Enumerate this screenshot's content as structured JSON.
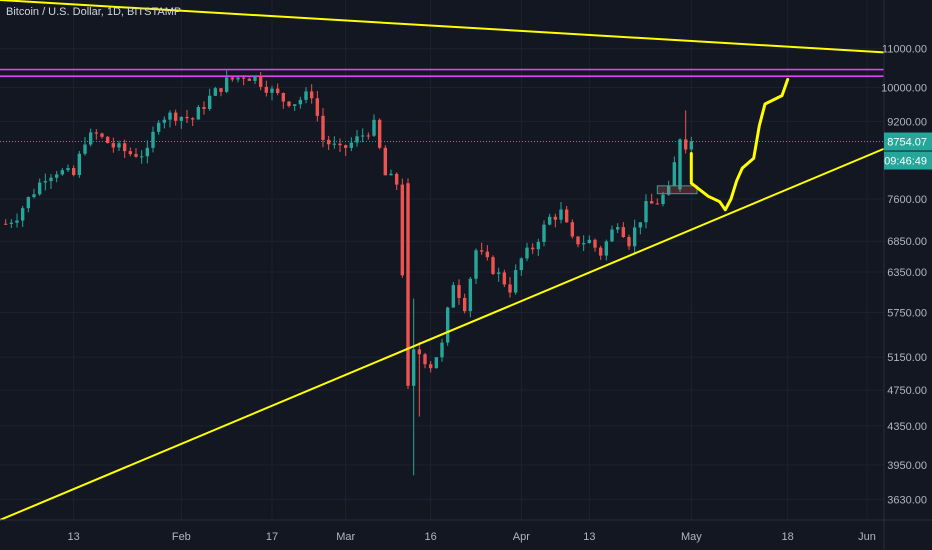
{
  "header": {
    "symbol_title": "Bitcoin / U.S. Dollar, 1D, BITSTAMP"
  },
  "colors": {
    "background": "#131722",
    "up": "#26a69a",
    "down": "#ef5350",
    "drawing_yellow": "#ffff00",
    "drawing_magenta": "#e040fb",
    "axis_text": "#b2b5be",
    "last_price_tag": "#26a69a"
  },
  "price_tag": {
    "price": "8754.07",
    "countdown": "09:46:49"
  },
  "chart_data": {
    "type": "candlestick",
    "title": "",
    "scale": "log",
    "y_ticks": [
      "11000.00",
      "10000.00",
      "9200.00",
      "8754.07",
      "7600.00",
      "6850.00",
      "6350.00",
      "5750.00",
      "5150.00",
      "4750.00",
      "4350.00",
      "3950.00",
      "3630.00"
    ],
    "y_tick_values": [
      11000,
      10000,
      9200,
      8754.07,
      7600,
      6850,
      6350,
      5750,
      5150,
      4750,
      4350,
      3950,
      3630
    ],
    "ylim": [
      3450,
      12400
    ],
    "x_tick_labels": [
      "13",
      "Feb",
      "17",
      "Mar",
      "16",
      "Apr",
      "13",
      "May",
      "18",
      "Jun"
    ],
    "x_tick_dates": [
      "2020-01-13",
      "2020-02-01",
      "2020-02-17",
      "2020-03-01",
      "2020-03-16",
      "2020-04-01",
      "2020-04-13",
      "2020-05-01",
      "2020-05-18",
      "2020-06-01"
    ],
    "x_range": [
      "2019-12-31",
      "2020-06-04"
    ],
    "last_price": 8754.07,
    "candle_anchors": [
      {
        "date": "2020-01-01",
        "close": 7150
      },
      {
        "date": "2020-01-03",
        "close": 7300
      },
      {
        "date": "2020-01-06",
        "close": 7750
      },
      {
        "date": "2020-01-08",
        "close": 8050
      },
      {
        "date": "2020-01-10",
        "close": 8150
      },
      {
        "date": "2020-01-13",
        "close": 8050
      },
      {
        "date": "2020-01-15",
        "close": 8800
      },
      {
        "date": "2020-01-17",
        "close": 8900
      },
      {
        "date": "2020-01-20",
        "close": 8650
      },
      {
        "date": "2020-01-23",
        "close": 8500
      },
      {
        "date": "2020-01-26",
        "close": 8500
      },
      {
        "date": "2020-01-28",
        "close": 9300
      },
      {
        "date": "2020-01-31",
        "close": 9350
      },
      {
        "date": "2020-02-03",
        "close": 9250
      },
      {
        "date": "2020-02-06",
        "close": 9750
      },
      {
        "date": "2020-02-09",
        "close": 10150
      },
      {
        "date": "2020-02-12",
        "close": 10300
      },
      {
        "date": "2020-02-14",
        "close": 10250
      },
      {
        "date": "2020-02-17",
        "close": 9900
      },
      {
        "date": "2020-02-19",
        "close": 9700
      },
      {
        "date": "2020-02-21",
        "close": 9650
      },
      {
        "date": "2020-02-24",
        "close": 9850
      },
      {
        "date": "2020-02-26",
        "close": 8800
      },
      {
        "date": "2020-02-29",
        "close": 8550
      },
      {
        "date": "2020-03-03",
        "close": 8800
      },
      {
        "date": "2020-03-06",
        "close": 9100
      },
      {
        "date": "2020-03-08",
        "close": 8050
      },
      {
        "date": "2020-03-10",
        "close": 7900
      },
      {
        "date": "2020-03-12",
        "close": 4800
      },
      {
        "date": "2020-03-14",
        "close": 5200
      },
      {
        "date": "2020-03-16",
        "close": 5050
      },
      {
        "date": "2020-03-18",
        "close": 5300
      },
      {
        "date": "2020-03-20",
        "close": 6200
      },
      {
        "date": "2020-03-22",
        "close": 5850
      },
      {
        "date": "2020-03-24",
        "close": 6700
      },
      {
        "date": "2020-03-27",
        "close": 6400
      },
      {
        "date": "2020-03-30",
        "close": 6100
      },
      {
        "date": "2020-04-01",
        "close": 6550
      },
      {
        "date": "2020-04-03",
        "close": 6750
      },
      {
        "date": "2020-04-06",
        "close": 7250
      },
      {
        "date": "2020-04-08",
        "close": 7350
      },
      {
        "date": "2020-04-10",
        "close": 6850
      },
      {
        "date": "2020-04-13",
        "close": 6850
      },
      {
        "date": "2020-04-15",
        "close": 6650
      },
      {
        "date": "2020-04-18",
        "close": 7200
      },
      {
        "date": "2020-04-20",
        "close": 6850
      },
      {
        "date": "2020-04-23",
        "close": 7450
      },
      {
        "date": "2020-04-25",
        "close": 7550
      },
      {
        "date": "2020-04-27",
        "close": 7750
      },
      {
        "date": "2020-04-29",
        "close": 8800
      },
      {
        "date": "2020-04-30",
        "close": 8700
      },
      {
        "date": "2020-05-01",
        "close": 8754
      }
    ],
    "drawings": {
      "resistance_band": [
        10280,
        10450
      ],
      "descending_line": [
        {
          "date": "2019-12-31",
          "price": 12400
        },
        {
          "date": "2020-06-04",
          "price": 10900
        }
      ],
      "ascending_line": [
        {
          "date": "2019-12-31",
          "price": 3450
        },
        {
          "date": "2020-06-04",
          "price": 8600
        }
      ],
      "support_box": {
        "from": "2020-04-25",
        "to": "2020-05-02",
        "low": 7700,
        "high": 7850
      },
      "projected_path": [
        {
          "date": "2020-05-01",
          "price": 8500
        },
        {
          "date": "2020-05-01",
          "price": 7900
        },
        {
          "date": "2020-05-04",
          "price": 7650
        },
        {
          "date": "2020-05-06",
          "price": 7550
        },
        {
          "date": "2020-05-07",
          "price": 7400
        },
        {
          "date": "2020-05-08",
          "price": 7600
        },
        {
          "date": "2020-05-09",
          "price": 7950
        },
        {
          "date": "2020-05-10",
          "price": 8200
        },
        {
          "date": "2020-05-12",
          "price": 8400
        },
        {
          "date": "2020-05-13",
          "price": 9100
        },
        {
          "date": "2020-05-14",
          "price": 9600
        },
        {
          "date": "2020-05-17",
          "price": 9800
        },
        {
          "date": "2020-05-18",
          "price": 10200
        }
      ]
    }
  }
}
